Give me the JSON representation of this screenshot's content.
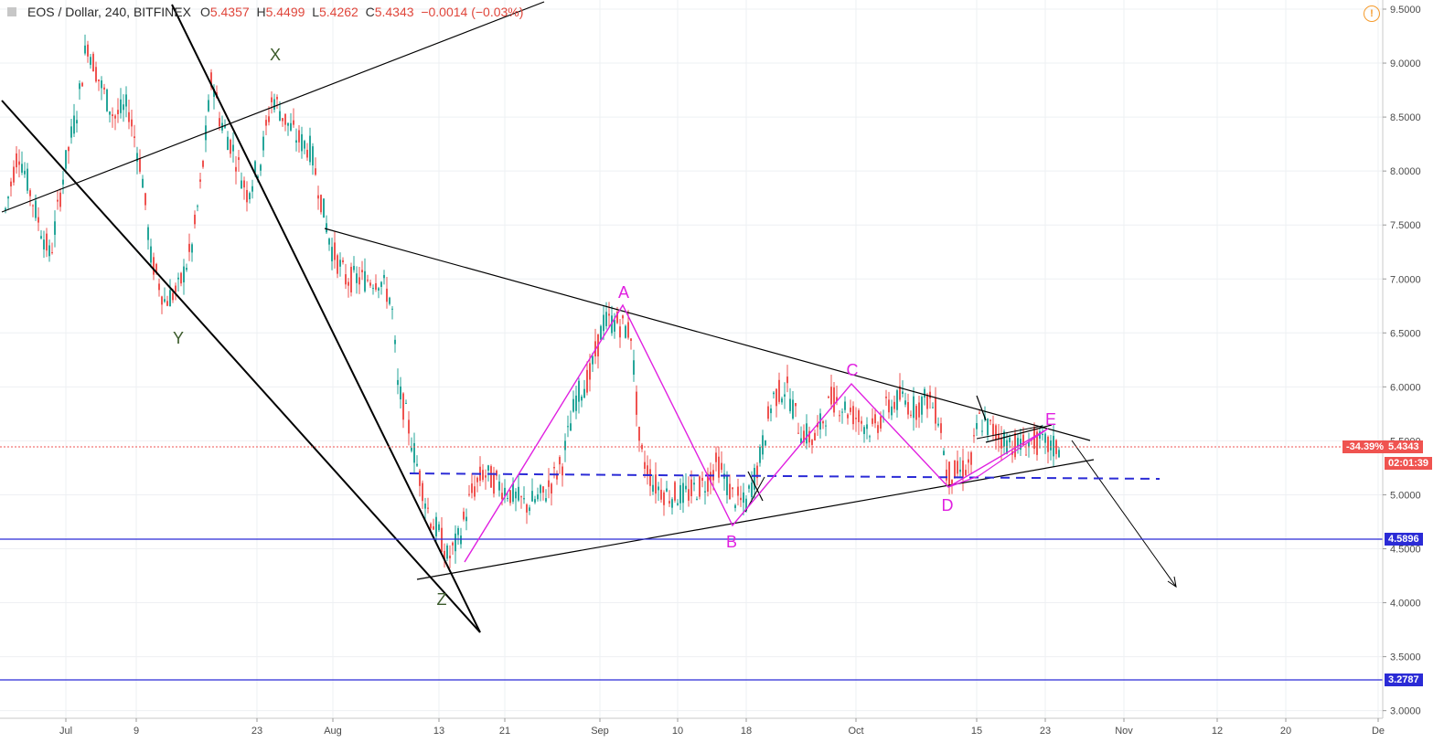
{
  "header": {
    "symbol": "EOS / Dollar, 240, BITFINEX",
    "o_label": "O",
    "o_value": "5.4357",
    "h_label": "H",
    "h_value": "5.4499",
    "l_label": "L",
    "l_value": "5.4262",
    "c_label": "C",
    "c_value": "5.4343",
    "change": "−0.0014 (−0.03%)"
  },
  "price_axis": {
    "ticks": [
      "9.5000",
      "9.0000",
      "8.5000",
      "8.0000",
      "7.5000",
      "7.0000",
      "6.5000",
      "6.0000",
      "5.5000",
      "5.0000",
      "4.5000",
      "4.0000",
      "3.5000",
      "3.0000"
    ],
    "current_pct": "-34.39%",
    "current_price": "5.4343",
    "countdown": "02:01:39",
    "level_1": "4.5896",
    "level_2": "3.2787"
  },
  "time_axis": {
    "ticks": [
      "Jul",
      "9",
      "23",
      "Aug",
      "13",
      "21",
      "Sep",
      "10",
      "18",
      "Oct",
      "15",
      "23",
      "Nov",
      "12",
      "20",
      "De"
    ]
  },
  "wave_labels": {
    "x": "X",
    "y": "Y",
    "z": "Z",
    "a": "A",
    "b": "B",
    "c": "C",
    "d": "D",
    "e": "E"
  },
  "colors": {
    "up": "#26a69a",
    "down": "#ef5350",
    "pattern": "#e020e0",
    "level": "#2b2bd6",
    "accent_red": "#e0463b",
    "dark_green_label": "#3a5a2a"
  }
}
